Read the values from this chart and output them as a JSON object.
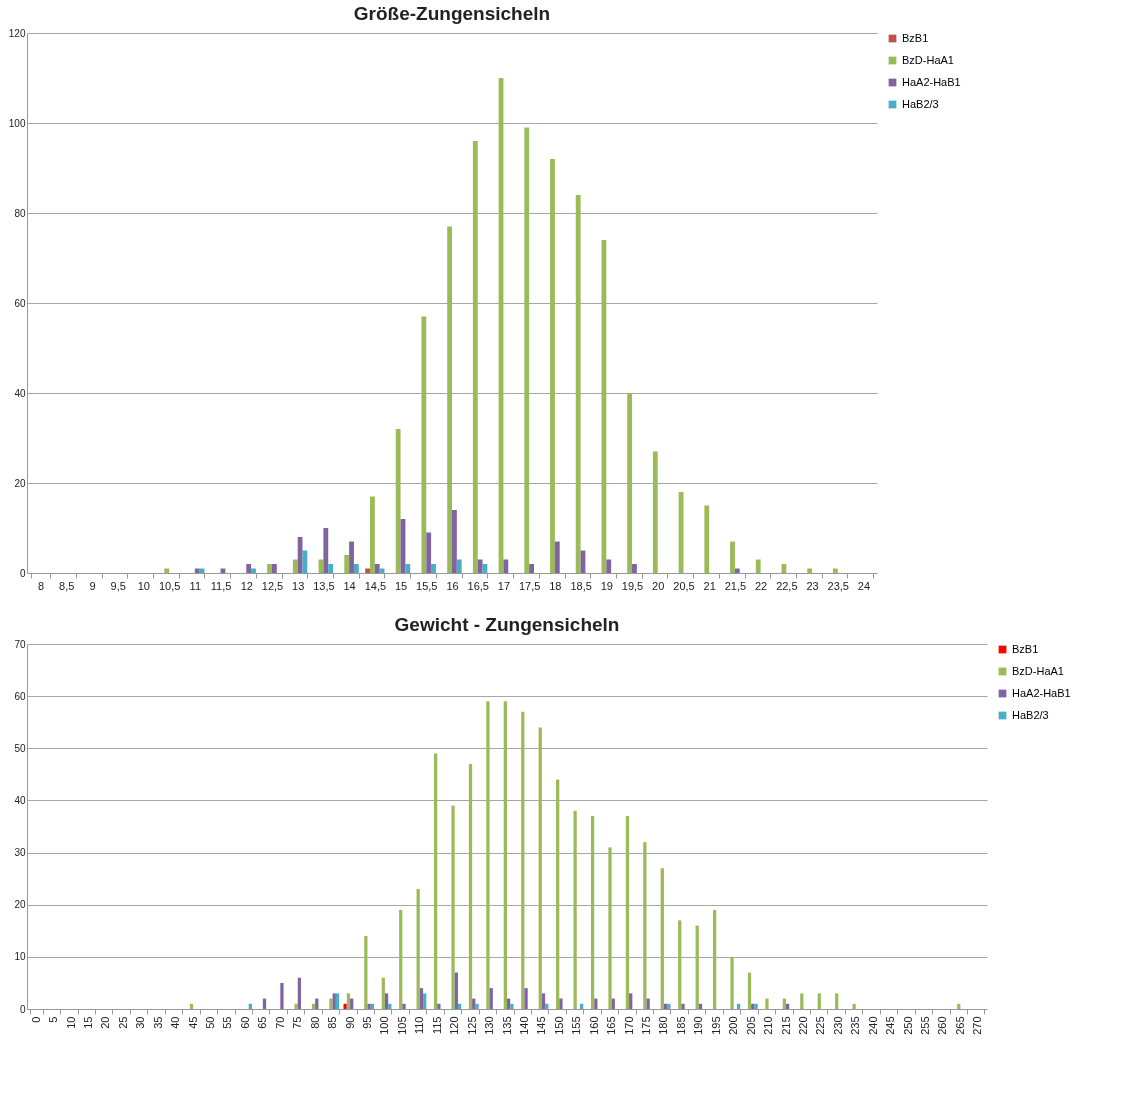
{
  "chart_data": [
    {
      "type": "bar",
      "title": "Größe-Zungensicheln",
      "categories": [
        "8",
        "8,5",
        "9",
        "9,5",
        "10",
        "10,5",
        "11",
        "11,5",
        "12",
        "12,5",
        "13",
        "13,5",
        "14",
        "14,5",
        "15",
        "15,5",
        "16",
        "16,5",
        "17",
        "17,5",
        "18",
        "18,5",
        "19",
        "19,5",
        "20",
        "20,5",
        "21",
        "21,5",
        "22",
        "22,5",
        "23",
        "23,5",
        "24"
      ],
      "series": [
        {
          "name": "BzB1",
          "color": "#c0504d",
          "values": [
            null,
            null,
            null,
            null,
            null,
            null,
            null,
            null,
            null,
            null,
            null,
            null,
            null,
            1,
            null,
            null,
            null,
            null,
            null,
            null,
            null,
            null,
            null,
            null,
            null,
            null,
            null,
            null,
            null,
            null,
            null,
            null,
            null
          ]
        },
        {
          "name": "BzD-HaA1",
          "color": "#9bbb59",
          "values": [
            null,
            null,
            null,
            null,
            null,
            1,
            null,
            null,
            null,
            2,
            3,
            3,
            4,
            17,
            32,
            57,
            77,
            96,
            110,
            99,
            92,
            84,
            74,
            40,
            27,
            18,
            15,
            7,
            3,
            2,
            1,
            1,
            null
          ]
        },
        {
          "name": "HaA2-HaB1",
          "color": "#8064a2",
          "values": [
            null,
            null,
            null,
            null,
            null,
            null,
            1,
            1,
            2,
            2,
            8,
            10,
            7,
            2,
            12,
            9,
            14,
            3,
            3,
            2,
            7,
            5,
            3,
            2,
            null,
            null,
            null,
            1,
            null,
            null,
            null,
            null,
            null
          ]
        },
        {
          "name": "HaB2/3",
          "color": "#4bacc6",
          "values": [
            null,
            null,
            null,
            null,
            null,
            null,
            1,
            null,
            1,
            null,
            5,
            2,
            2,
            1,
            2,
            2,
            3,
            2,
            null,
            null,
            null,
            null,
            null,
            null,
            null,
            null,
            null,
            null,
            null,
            null,
            null,
            null,
            null
          ]
        }
      ],
      "ylim": [
        0,
        120
      ],
      "yticks": [
        0,
        20,
        40,
        60,
        80,
        100,
        120
      ],
      "grid": "y",
      "legend": "right"
    },
    {
      "type": "bar",
      "title": "Gewicht - Zungensicheln",
      "categories": [
        "0",
        "5",
        "10",
        "15",
        "20",
        "25",
        "30",
        "35",
        "40",
        "45",
        "50",
        "55",
        "60",
        "65",
        "70",
        "75",
        "80",
        "85",
        "90",
        "95",
        "100",
        "105",
        "110",
        "115",
        "120",
        "125",
        "130",
        "135",
        "140",
        "145",
        "150",
        "155",
        "160",
        "165",
        "170",
        "175",
        "180",
        "185",
        "190",
        "195",
        "200",
        "205",
        "210",
        "215",
        "220",
        "225",
        "230",
        "235",
        "240",
        "245",
        "250",
        "255",
        "260",
        "265",
        "270"
      ],
      "series": [
        {
          "name": "BzB1",
          "color": "#ff0000",
          "values": [
            null,
            null,
            null,
            null,
            null,
            null,
            null,
            null,
            null,
            null,
            null,
            null,
            null,
            null,
            null,
            null,
            null,
            null,
            1,
            null,
            null,
            null,
            null,
            null,
            null,
            null,
            null,
            null,
            null,
            null,
            null,
            null,
            null,
            null,
            null,
            null,
            null,
            null,
            null,
            null,
            null,
            null,
            null,
            null,
            null,
            null,
            null,
            null,
            null,
            null,
            null,
            null,
            null,
            null,
            null
          ]
        },
        {
          "name": "BzD-HaA1",
          "color": "#9bbb59",
          "values": [
            null,
            null,
            null,
            null,
            null,
            null,
            null,
            null,
            null,
            1,
            null,
            null,
            null,
            null,
            null,
            1,
            1,
            2,
            3,
            14,
            6,
            19,
            23,
            49,
            39,
            47,
            59,
            59,
            57,
            54,
            44,
            38,
            37,
            31,
            37,
            32,
            27,
            17,
            16,
            19,
            10,
            7,
            2,
            2,
            3,
            3,
            3,
            1,
            null,
            null,
            null,
            null,
            null,
            1,
            null
          ]
        },
        {
          "name": "HaA2-HaB1",
          "color": "#8064a2",
          "values": [
            null,
            null,
            null,
            null,
            null,
            null,
            null,
            null,
            null,
            null,
            null,
            null,
            null,
            2,
            5,
            6,
            2,
            3,
            2,
            1,
            3,
            1,
            4,
            1,
            7,
            2,
            4,
            2,
            4,
            3,
            2,
            null,
            2,
            2,
            3,
            2,
            1,
            1,
            1,
            null,
            null,
            1,
            null,
            1,
            null,
            null,
            null,
            null,
            null,
            null,
            null,
            null,
            null,
            null,
            null
          ]
        },
        {
          "name": "HaB2/3",
          "color": "#4bacc6",
          "values": [
            null,
            null,
            null,
            null,
            null,
            null,
            null,
            null,
            null,
            null,
            null,
            null,
            1,
            null,
            null,
            null,
            null,
            3,
            null,
            1,
            1,
            null,
            3,
            null,
            1,
            1,
            null,
            1,
            null,
            1,
            null,
            1,
            null,
            null,
            null,
            null,
            1,
            null,
            null,
            null,
            1,
            1,
            null,
            null,
            null,
            null,
            null,
            null,
            null,
            null,
            null,
            null,
            null,
            null,
            null
          ]
        }
      ],
      "ylim": [
        0,
        70
      ],
      "yticks": [
        0,
        10,
        20,
        30,
        40,
        50,
        60,
        70
      ],
      "grid": "y",
      "legend": "right"
    }
  ]
}
